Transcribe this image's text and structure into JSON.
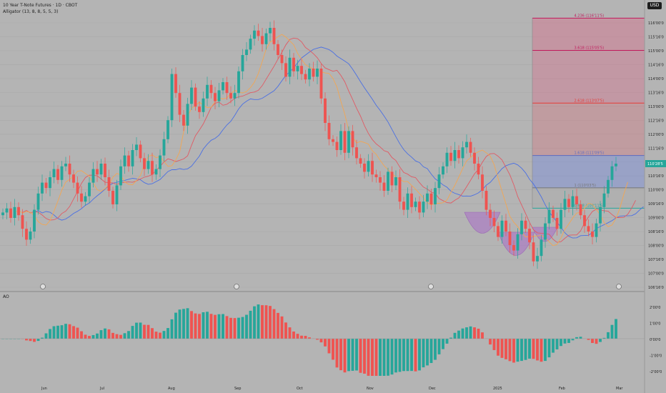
{
  "header": {
    "title": "10 Year T-Note Futures · 1D · CBOT",
    "indicator": "Alligator (13, 8, 8, 5, 5, 3)",
    "currency": "USD"
  },
  "ao_label": "AO",
  "price_axis": {
    "ticks": [
      "116'00'0",
      "115'16'0",
      "115'00'0",
      "114'16'0",
      "114'00'0",
      "113'16'0",
      "113'00'0",
      "112'16'0",
      "112'00'0",
      "111'16'0",
      "111'00'0",
      "110'16'0",
      "110'00'0",
      "109'16'0",
      "109'00'0",
      "108'16'0",
      "108'00'0",
      "107'16'0",
      "107'00'0",
      "106'16'0"
    ],
    "current": "110'28'5"
  },
  "ao_axis": {
    "ticks": [
      "2'00'0",
      "1'00'0",
      "0'00'0",
      "-1'00'0",
      "-2'00'0"
    ]
  },
  "time_axis": {
    "labels": [
      "Jun",
      "Jul",
      "Aug",
      "Sep",
      "Oct",
      "Nov",
      "Dec",
      "2025",
      "Feb",
      "Mar"
    ]
  },
  "fib": {
    "levels": [
      {
        "label": "4.236 (116'11'5)",
        "price": 116.36,
        "color": "#c2185b"
      },
      {
        "label": "3.618 (115'05'5)",
        "price": 115.17,
        "color": "#c2185b"
      },
      {
        "label": "2.618 (113'07'5)",
        "price": 113.23,
        "color": "#e53935"
      },
      {
        "label": "1.618 (111'09'5)",
        "price": 111.3,
        "color": "#5c6bc0"
      },
      {
        "label": "1 (110'03'5)",
        "price": 110.11,
        "color": "#757575"
      },
      {
        "label": "0.618 (109'11'5)",
        "price": 109.36,
        "color": "#26a69a"
      }
    ]
  },
  "colors": {
    "up": "#26a69a",
    "down": "#ef5350",
    "jaw": "#4a6fe3",
    "teeth": "#e05a64",
    "lips": "#f2a653"
  },
  "chart_data": {
    "type": "candlestick",
    "price_range": [
      106.5,
      116.5
    ],
    "closes": [
      109.2,
      109.35,
      109.0,
      109.4,
      109.1,
      108.6,
      108.2,
      108.5,
      109.3,
      109.9,
      110.3,
      110.1,
      110.5,
      110.8,
      110.4,
      110.9,
      111.0,
      110.6,
      110.3,
      109.9,
      109.6,
      109.8,
      110.3,
      110.8,
      110.6,
      111.0,
      110.5,
      110.0,
      109.5,
      110.2,
      110.9,
      111.3,
      110.9,
      111.5,
      111.7,
      111.2,
      110.8,
      111.1,
      110.6,
      110.8,
      111.3,
      111.9,
      112.6,
      114.3,
      113.6,
      112.8,
      112.4,
      113.2,
      113.8,
      113.1,
      112.9,
      113.4,
      113.9,
      113.6,
      113.3,
      113.7,
      114.0,
      113.6,
      113.4,
      113.6,
      114.4,
      115.0,
      115.2,
      115.6,
      115.9,
      115.7,
      115.4,
      115.8,
      116.0,
      115.4,
      115.0,
      114.7,
      114.2,
      114.9,
      114.4,
      114.6,
      114.3,
      114.1,
      114.5,
      114.2,
      114.5,
      113.4,
      112.5,
      111.9,
      111.8,
      111.5,
      112.2,
      111.4,
      112.2,
      111.6,
      111.2,
      111.0,
      110.7,
      111.1,
      110.6,
      110.5,
      110.3,
      110.0,
      110.7,
      110.2,
      110.5,
      109.6,
      109.3,
      109.9,
      109.4,
      109.6,
      109.2,
      109.6,
      109.9,
      109.5,
      110.1,
      110.6,
      110.9,
      111.4,
      111.1,
      111.5,
      111.2,
      111.6,
      111.8,
      111.4,
      111.0,
      110.6,
      110.0,
      109.3,
      109.0,
      108.7,
      108.3,
      108.9,
      108.5,
      108.0,
      107.8,
      108.4,
      108.9,
      108.6,
      108.1,
      107.4,
      107.6,
      108.2,
      108.8,
      109.3,
      109.0,
      108.6,
      109.3,
      109.7,
      109.4,
      109.8,
      109.5,
      109.1,
      108.7,
      108.5,
      108.3,
      108.8,
      109.4,
      109.9,
      110.4,
      110.9,
      111.0
    ]
  }
}
